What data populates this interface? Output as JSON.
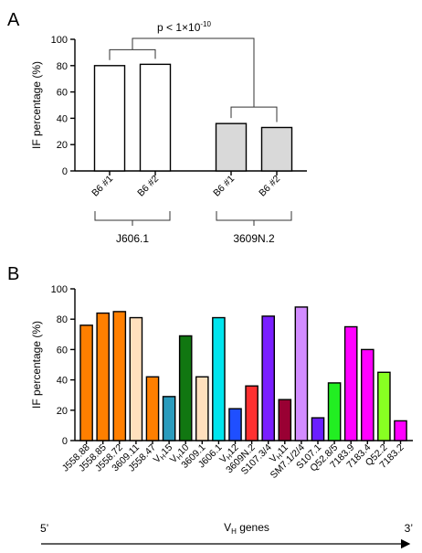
{
  "panel_a_label": "A",
  "panel_b_label": "B",
  "chart_data": [
    {
      "type": "bar",
      "ylabel": "IF percentage (%)",
      "ylim": [
        0,
        100
      ],
      "yticks": [
        0,
        20,
        40,
        60,
        80,
        100
      ],
      "categories": [
        "B6 #1",
        "B6 #2",
        "B6 #1",
        "B6 #2"
      ],
      "values": [
        80,
        81,
        36,
        33
      ],
      "colors": [
        "#ffffff",
        "#ffffff",
        "#d9d9d9",
        "#d9d9d9"
      ],
      "groups": [
        {
          "label": "J606.1",
          "indices": [
            0,
            1
          ]
        },
        {
          "label": "3609N.2",
          "indices": [
            2,
            3
          ]
        }
      ],
      "significance": {
        "text": "p < 1×10",
        "exponent": "-10"
      }
    },
    {
      "type": "bar",
      "ylabel": "IF percentage (%)",
      "ylim": [
        0,
        100
      ],
      "yticks": [
        0,
        20,
        40,
        60,
        80,
        100
      ],
      "categories": [
        "J558.88",
        "J558.85",
        "J558.72",
        "3609.11",
        "J558.47",
        "VH15",
        "VH10",
        "3609.1",
        "J606.1",
        "VH12",
        "3609N.2",
        "S107.3/4",
        "VH11",
        "SM7.1/2/4",
        "S107.1",
        "Q52.8/5",
        "7183.9",
        "7183.4",
        "Q52.2",
        "7183.2"
      ],
      "category_labels": [
        {
          "text": "J558.88"
        },
        {
          "text": "J558.85"
        },
        {
          "text": "J558.72"
        },
        {
          "text": "3609.11"
        },
        {
          "text": "J558.47"
        },
        {
          "base": "V",
          "sub": "H",
          "rest": "15"
        },
        {
          "base": "V",
          "sub": "H",
          "rest": "10"
        },
        {
          "text": "3609.1"
        },
        {
          "text": "J606.1"
        },
        {
          "base": "V",
          "sub": "H",
          "rest": "12"
        },
        {
          "text": "3609N.2"
        },
        {
          "text": "S107.3/4"
        },
        {
          "base": "V",
          "sub": "H",
          "rest": "11"
        },
        {
          "text": "SM7.1/2/4"
        },
        {
          "text": "S107.1"
        },
        {
          "text": "Q52.8/5"
        },
        {
          "text": "7183.9"
        },
        {
          "text": "7183.4"
        },
        {
          "text": "Q52.2"
        },
        {
          "text": "7183.2"
        }
      ],
      "values": [
        76,
        84,
        85,
        81,
        42,
        29,
        69,
        42,
        81,
        21,
        36,
        82,
        27,
        88,
        15,
        38,
        75,
        60,
        45,
        13
      ],
      "colors": [
        "#ff7f00",
        "#ff7f00",
        "#ff7f00",
        "#ffe0bd",
        "#ff7f00",
        "#2a9bbd",
        "#117711",
        "#ffe0bd",
        "#00e5ee",
        "#1f4fff",
        "#ff3030",
        "#7a1fff",
        "#990033",
        "#d28cff",
        "#6a1fff",
        "#22ee22",
        "#ff00ff",
        "#ff00ff",
        "#88ff22",
        "#ff00ff"
      ],
      "xlabel": {
        "base": "V",
        "sub": "H",
        "rest": " genes"
      },
      "axis_start_label": "5’",
      "axis_end_label": "3’"
    }
  ]
}
